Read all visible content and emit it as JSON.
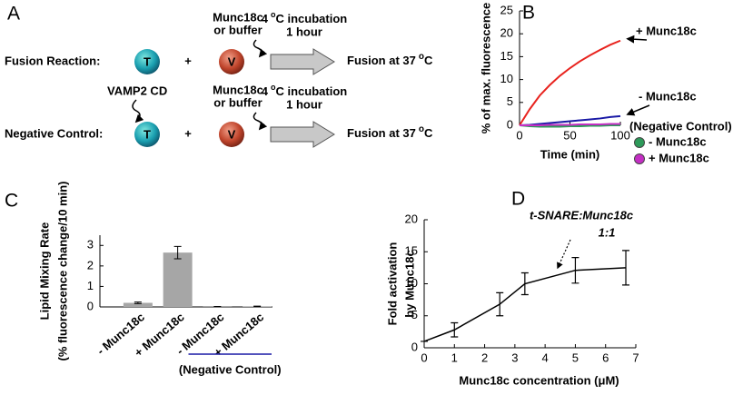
{
  "diagram": {
    "label": "A",
    "rows": [
      {
        "title": "Fusion Reaction:",
        "t": "T",
        "plus": "+",
        "v": "V",
        "additive": [
          "Munc18c",
          "or buffer"
        ],
        "incubation": {
          "temp": "4",
          "deg": "o",
          "text": "C incubation"
        },
        "duration": "1 hour",
        "result": {
          "text": "Fusion at 37",
          "deg": "o",
          "unit": "C"
        }
      },
      {
        "title": "Negative Control:",
        "pretreatment": "VAMP2 CD",
        "t": "T",
        "plus": "+",
        "v": "V",
        "additive": [
          "Munc18c",
          "or buffer"
        ],
        "incubation": {
          "temp": "4",
          "deg": "o",
          "text": "C incubation"
        },
        "duration": "1 hour",
        "result": {
          "text": "Fusion at 37",
          "deg": "o",
          "unit": "C"
        }
      }
    ]
  },
  "chart_data": [
    {
      "type": "line",
      "panel": "B",
      "xlabel": "Time (min)",
      "ylabel": "% of max. fluorescence",
      "x": [
        0,
        10,
        20,
        30,
        40,
        50,
        60,
        70,
        80,
        90,
        100
      ],
      "series": [
        {
          "name": "+ Munc18c",
          "color": "#e8231e",
          "label_style": "arrow",
          "values": [
            0,
            3.5,
            6.5,
            8.8,
            10.8,
            12.5,
            14,
            15.3,
            16.5,
            17.6,
            18.5
          ]
        },
        {
          "name": "- Munc18c",
          "color": "#1a1aa6",
          "label_style": "arrow",
          "values": [
            0,
            0.1,
            0.3,
            0.5,
            0.7,
            0.9,
            1.1,
            1.3,
            1.5,
            1.8,
            2.0
          ]
        },
        {
          "name": "- Munc18c",
          "color": "#2e9a5a",
          "label_style": "dot",
          "values": [
            0,
            -0.2,
            -0.3,
            -0.3,
            -0.3,
            -0.2,
            -0.2,
            -0.1,
            -0.1,
            0,
            0
          ]
        },
        {
          "name": "+ Munc18c",
          "color": "#c42fc4",
          "label_style": "dot",
          "values": [
            0,
            0,
            0,
            0.1,
            0.1,
            0.1,
            0.2,
            0.2,
            0.2,
            0.3,
            0.3
          ]
        }
      ],
      "annotations": [
        "(Negative Control)"
      ],
      "xlim": [
        0,
        100
      ],
      "xticks": [
        0,
        50,
        100
      ],
      "ylim": [
        0,
        25
      ],
      "yticks": [
        0,
        5,
        10,
        15,
        20,
        25
      ]
    },
    {
      "type": "bar",
      "panel": "C",
      "ylabel": [
        "Lipid Mixing Rate",
        "(% fluorescence change/10 min)"
      ],
      "categories": [
        "- Munc18c",
        "+ Munc18c",
        "- Munc18c",
        "+ Munc18c"
      ],
      "values": [
        0.2,
        2.65,
        0.01,
        0.03
      ],
      "errors": [
        0.04,
        0.3,
        0.01,
        0.01
      ],
      "color": "#a6a6a6",
      "group_label": "(Negative Control)",
      "group_color": "#1a1aa6",
      "ylim": [
        0,
        3.5
      ],
      "yticks": [
        0,
        1,
        2,
        3
      ]
    },
    {
      "type": "line",
      "panel": "D",
      "xlabel": "Munc18c concentration (μM)",
      "ylabel": [
        "Fold activation",
        "by Munc18c"
      ],
      "x": [
        0,
        1,
        2.5,
        3.33,
        5,
        6.67
      ],
      "values": [
        1,
        2.8,
        6.8,
        10,
        12.1,
        12.5
      ],
      "errors": [
        0,
        1.1,
        1.8,
        1.7,
        2.0,
        2.7
      ],
      "color": "#000000",
      "annotations": [
        "t-SNARE:Munc18c",
        "1:1"
      ],
      "xlim": [
        0,
        7
      ],
      "xticks": [
        0,
        1,
        2,
        3,
        4,
        5,
        6,
        7
      ],
      "ylim": [
        0,
        20
      ],
      "yticks": [
        0,
        5,
        10,
        15,
        20
      ]
    }
  ]
}
